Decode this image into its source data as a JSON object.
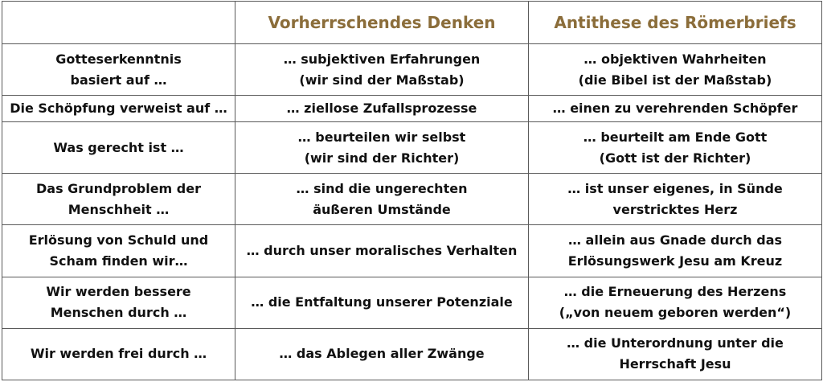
{
  "header": {
    "col1": "",
    "col2": "Vorherrschendes Denken",
    "col3": "Antithese des Römerbriefs"
  },
  "accent_color": "#8b6d3a",
  "rows": [
    {
      "topic": "Gotteserkenntnis\nbasiert auf …",
      "common": "… subjektiven Erfahrungen\n(wir sind der Maßstab)",
      "romans": "… objektiven Wahrheiten\n(die Bibel ist der Maßstab)"
    },
    {
      "topic": "Die Schöpfung verweist auf …",
      "common": "… ziellose Zufallsprozesse",
      "romans": "… einen zu verehrenden Schöpfer"
    },
    {
      "topic": "Was gerecht ist …",
      "common": "… beurteilen wir selbst\n(wir sind der Richter)",
      "romans": "… beurteilt am Ende Gott\n(Gott ist der Richter)"
    },
    {
      "topic": "Das Grundproblem der\nMenschheit …",
      "common": "… sind die ungerechten\näußeren Umstände",
      "romans": "… ist unser eigenes, in Sünde\nverstricktes Herz"
    },
    {
      "topic": "Erlösung von Schuld und\nScham finden wir…",
      "common": "… durch unser moralisches Verhalten",
      "romans": "… allein aus Gnade durch das\nErlösungswerk Jesu am Kreuz"
    },
    {
      "topic": "Wir werden bessere\nMenschen durch …",
      "common": "… die Entfaltung unserer Potenziale",
      "romans": "… die Erneuerung des Herzens\n(„von neuem geboren werden“)"
    },
    {
      "topic": "Wir werden frei durch …",
      "common": "… das Ablegen aller Zwänge",
      "romans": "… die Unterordnung unter die\nHerrschaft Jesu"
    }
  ]
}
